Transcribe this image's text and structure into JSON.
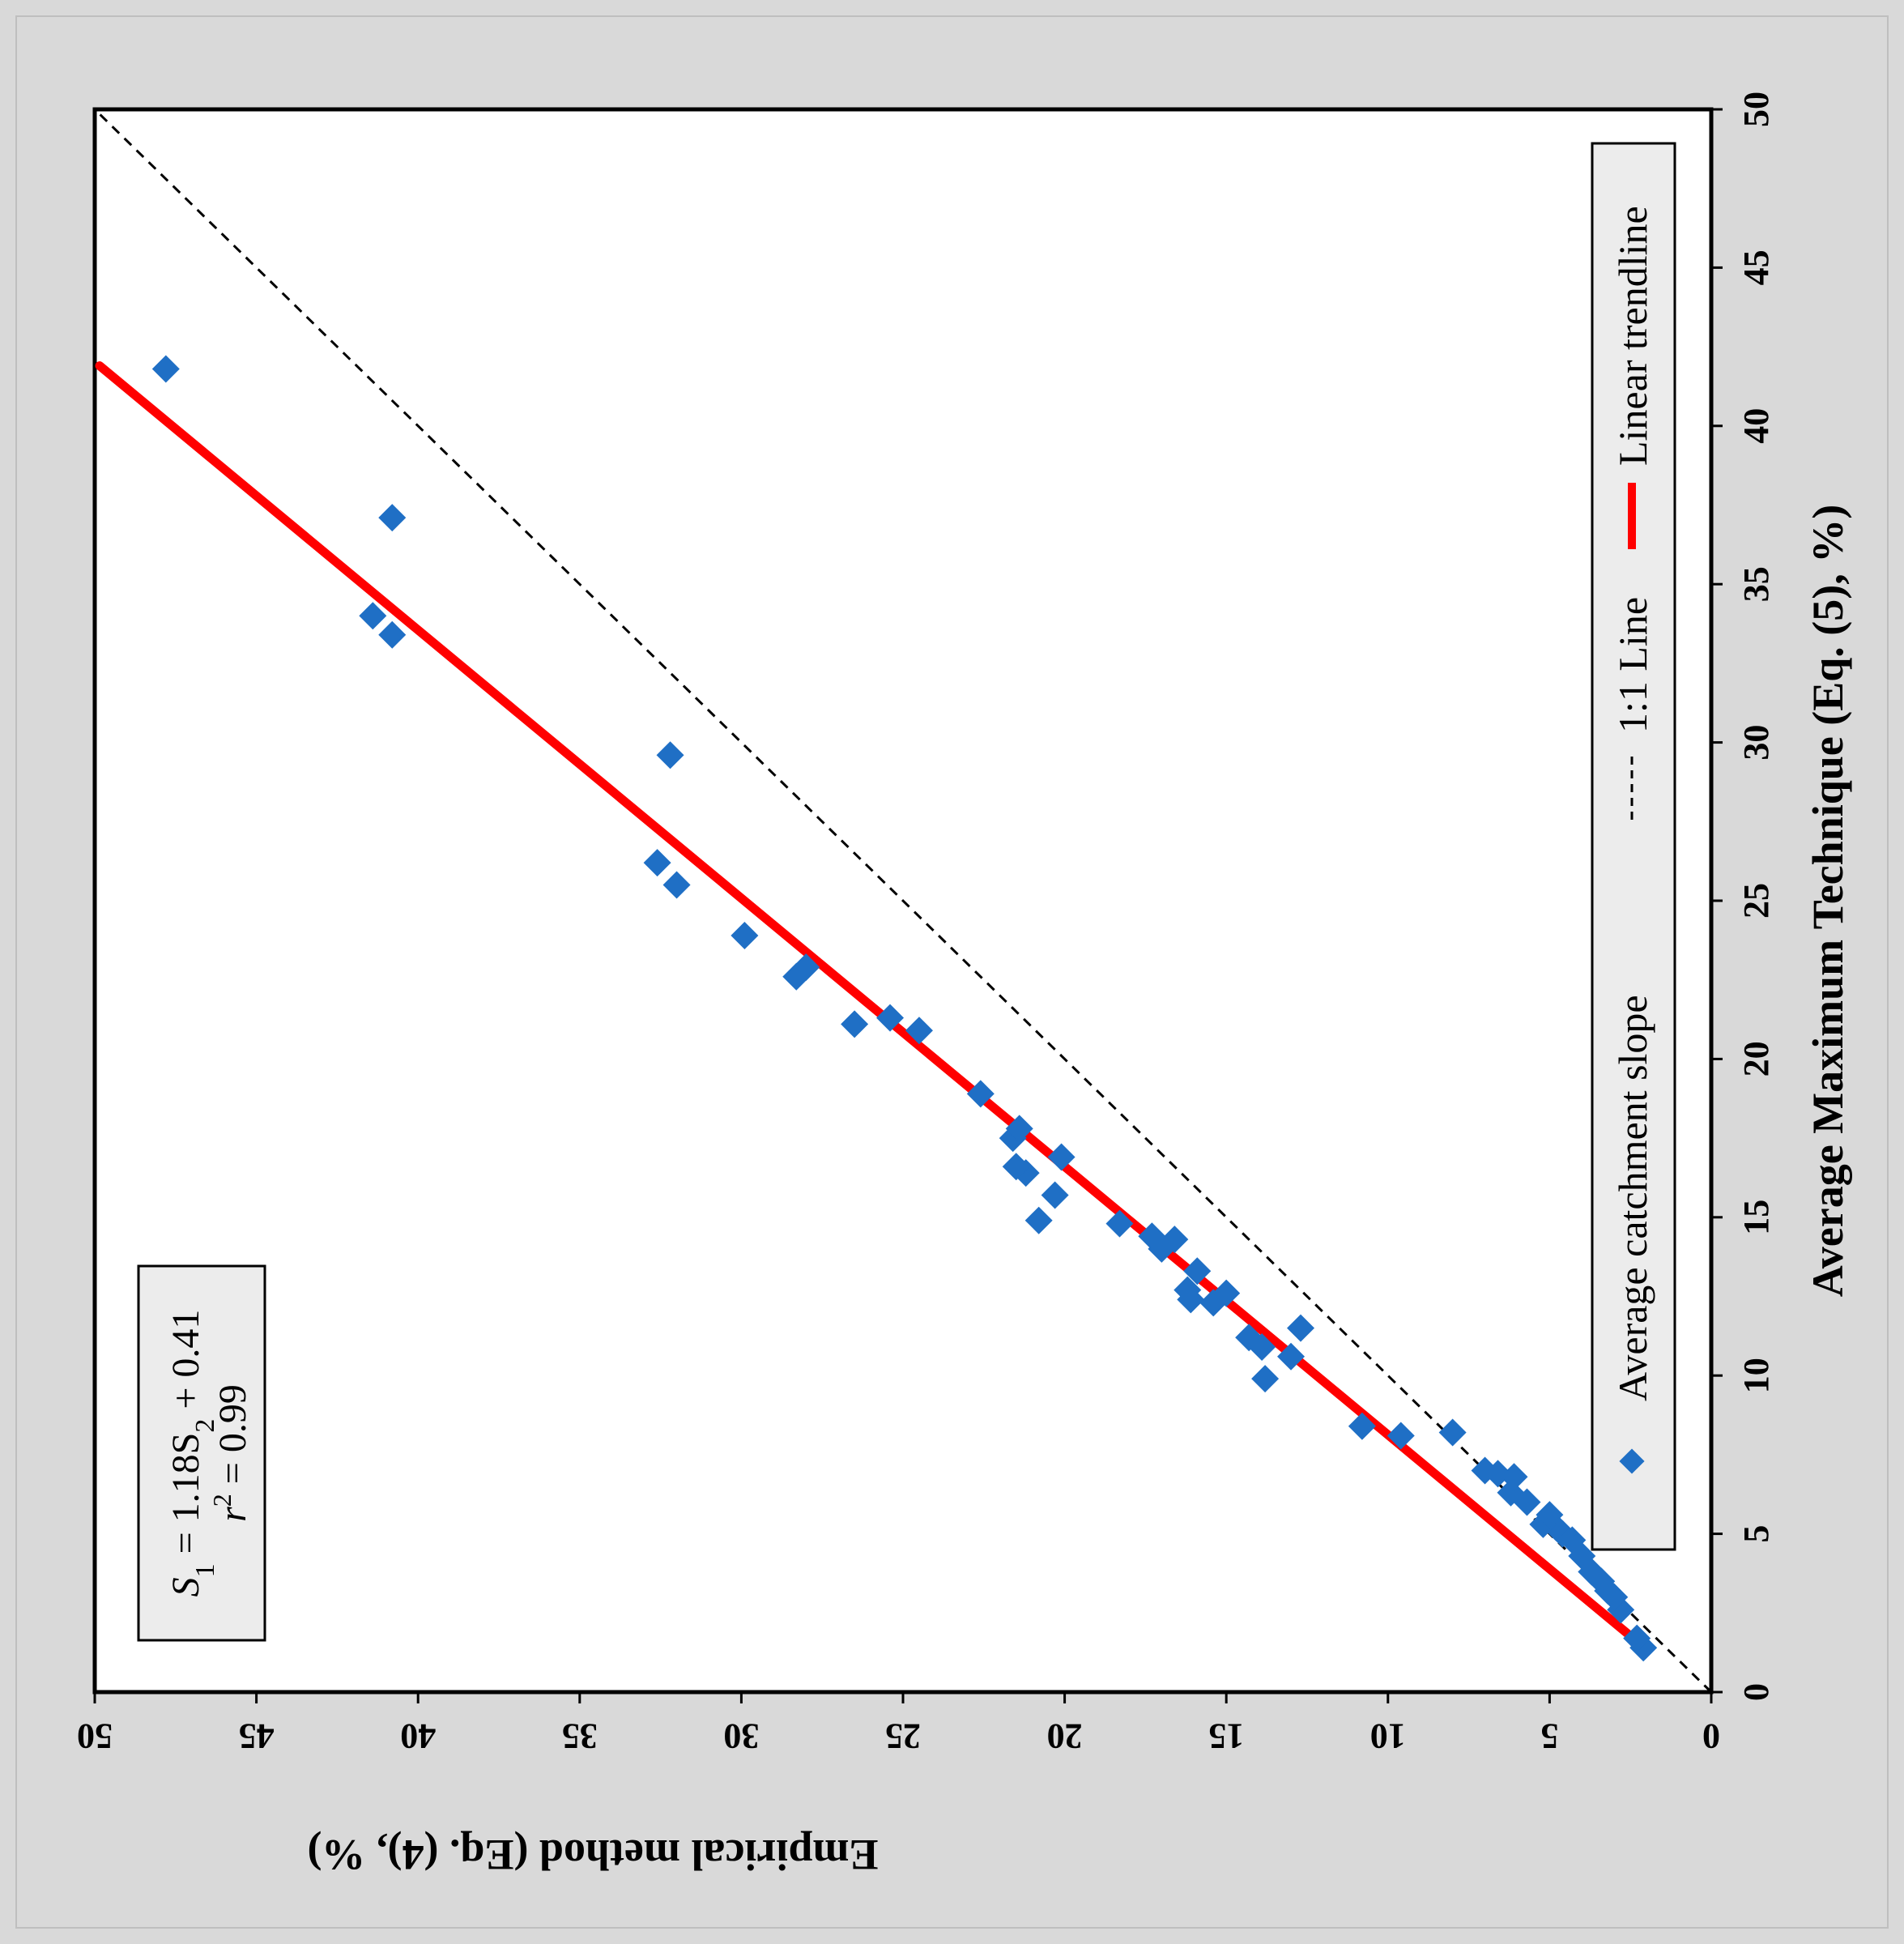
{
  "chart_data": {
    "type": "scatter",
    "orientation_note": "figure rotated 90 degrees clockwise",
    "xlabel": "Average Maximum Technique (Eq. (5), %)",
    "ylabel": "Empirical method (Eq. (4), %)",
    "xlim": [
      0,
      50
    ],
    "ylim": [
      0,
      50
    ],
    "x_ticks": [
      "0",
      "5",
      "10",
      "15",
      "20",
      "25",
      "30",
      "35",
      "40",
      "45",
      "50"
    ],
    "y_ticks": [
      "0",
      "5",
      "10",
      "15",
      "20",
      "25",
      "30",
      "35",
      "40",
      "45",
      "50"
    ],
    "equation": {
      "line1_prefix": "S",
      "line1_sub1": "1",
      "line1_mid": " = 1.18S",
      "line1_sub2": "2",
      "line1_suffix": " + 0.41",
      "line2_var": "r",
      "line2_sup": "2",
      "line2_rest": " = 0.99"
    },
    "legend": [
      "Average catchment slope",
      "1:1 Line",
      "Linear trendline"
    ],
    "colors": {
      "points": "#1f6fc5",
      "trendline": "#ff0000",
      "one_to_one": "#000000",
      "background": "#d9d9d9"
    },
    "series": [
      {
        "name": "Average catchment slope",
        "points": [
          [
            1.4,
            2.1
          ],
          [
            1.7,
            2.3
          ],
          [
            2.6,
            2.8
          ],
          [
            3.0,
            3.0
          ],
          [
            3.2,
            3.2
          ],
          [
            3.5,
            3.4
          ],
          [
            3.8,
            3.7
          ],
          [
            4.3,
            4.0
          ],
          [
            4.8,
            4.3
          ],
          [
            5.0,
            4.6
          ],
          [
            5.2,
            4.8
          ],
          [
            5.3,
            5.2
          ],
          [
            5.6,
            5.0
          ],
          [
            6.0,
            5.7
          ],
          [
            6.3,
            6.2
          ],
          [
            6.8,
            6.1
          ],
          [
            6.9,
            6.6
          ],
          [
            7.0,
            7.0
          ],
          [
            8.2,
            8.0
          ],
          [
            8.1,
            9.6
          ],
          [
            8.4,
            10.8
          ],
          [
            9.9,
            13.8
          ],
          [
            10.6,
            13.0
          ],
          [
            10.9,
            13.9
          ],
          [
            11.2,
            14.3
          ],
          [
            11.5,
            12.7
          ],
          [
            12.3,
            15.4
          ],
          [
            12.6,
            15.0
          ],
          [
            12.4,
            16.1
          ],
          [
            12.7,
            16.2
          ],
          [
            13.3,
            15.9
          ],
          [
            14.0,
            17.0
          ],
          [
            14.4,
            17.3
          ],
          [
            14.3,
            16.6
          ],
          [
            14.8,
            18.3
          ],
          [
            14.9,
            20.8
          ],
          [
            15.7,
            20.3
          ],
          [
            16.4,
            21.2
          ],
          [
            16.6,
            21.5
          ],
          [
            16.9,
            20.1
          ],
          [
            17.5,
            21.6
          ],
          [
            17.8,
            21.4
          ],
          [
            18.9,
            22.6
          ],
          [
            20.9,
            24.5
          ],
          [
            21.3,
            25.4
          ],
          [
            21.1,
            26.5
          ],
          [
            22.6,
            28.3
          ],
          [
            22.9,
            28.0
          ],
          [
            23.9,
            29.9
          ],
          [
            25.5,
            32.0
          ],
          [
            26.2,
            32.6
          ],
          [
            29.6,
            32.2
          ],
          [
            33.4,
            40.8
          ],
          [
            34.0,
            41.4
          ],
          [
            37.1,
            40.8
          ],
          [
            41.8,
            47.8
          ]
        ]
      },
      {
        "name": "1:1 Line",
        "x": [
          0,
          50
        ],
        "y": [
          0,
          50
        ]
      },
      {
        "name": "Linear trendline",
        "x": [
          1.5,
          41.9
        ],
        "y": [
          2.18,
          49.85
        ]
      }
    ]
  }
}
